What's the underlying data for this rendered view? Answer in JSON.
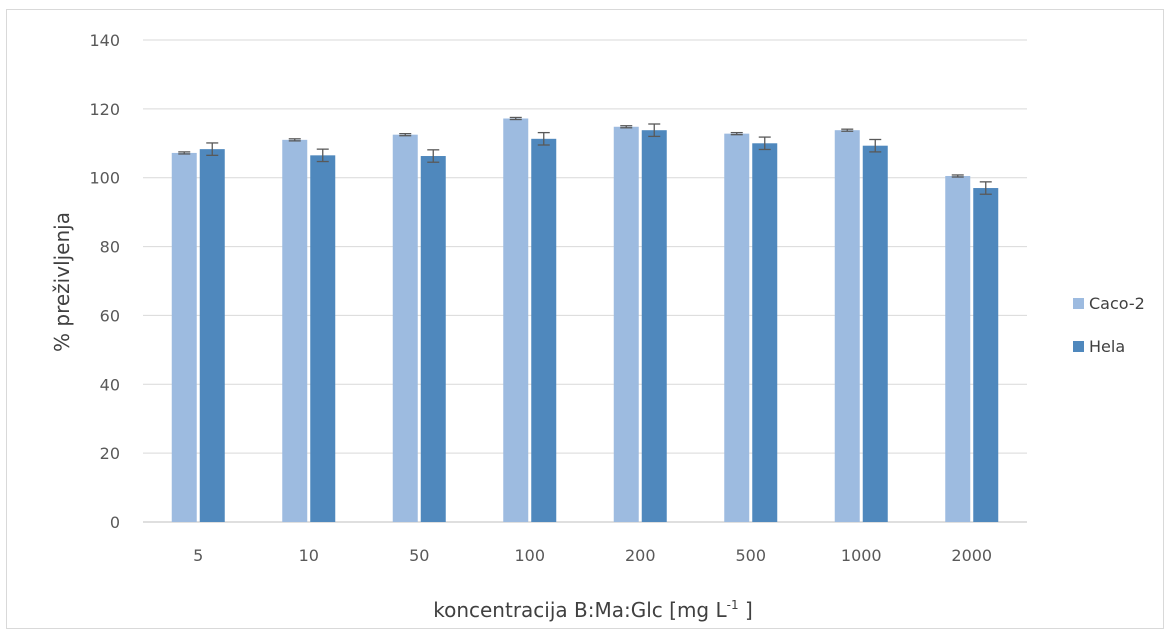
{
  "chart_data": {
    "type": "bar",
    "categories": [
      "5",
      "10",
      "50",
      "100",
      "200",
      "500",
      "1000",
      "2000"
    ],
    "series": [
      {
        "name": "Caco-2",
        "color": "#9dbbe0",
        "values": [
          107.2,
          111.0,
          112.5,
          117.2,
          114.8,
          112.8,
          113.8,
          100.5
        ],
        "errors": [
          0.3,
          0.3,
          0.3,
          0.3,
          0.3,
          0.3,
          0.3,
          0.3
        ]
      },
      {
        "name": "Hela",
        "color": "#4f88bd",
        "values": [
          108.3,
          106.5,
          106.3,
          111.3,
          113.8,
          110.0,
          109.3,
          97.0
        ],
        "errors": [
          1.8,
          1.8,
          1.8,
          1.8,
          1.8,
          1.8,
          1.8,
          1.8
        ]
      }
    ],
    "ylim": [
      0,
      140
    ],
    "yticks": [
      0,
      20,
      40,
      60,
      80,
      100,
      120,
      140
    ],
    "ylabel": "% preživljenja",
    "xlabel": "koncentracija B:Ma:Glc  [mg L",
    "xlabel_sup": "-1",
    "xlabel_end": " ]",
    "grid": true,
    "legend_position": "right"
  }
}
